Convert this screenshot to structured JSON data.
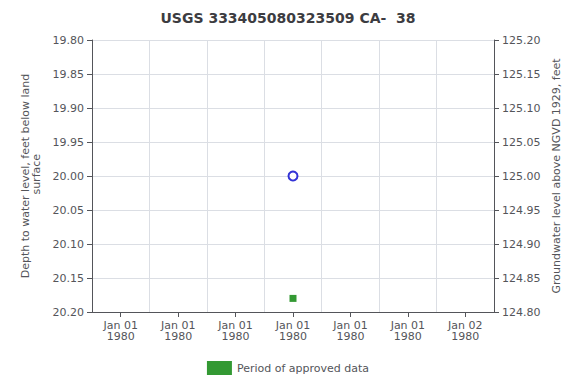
{
  "chart_data": {
    "type": "scatter",
    "title": "USGS 333405080323509 CA-  38",
    "categories": [
      "Jan 01\n1980",
      "Jan 01\n1980",
      "Jan 01\n1980",
      "Jan 01\n1980",
      "Jan 01\n1980",
      "Jan 01\n1980",
      "Jan 02\n1980"
    ],
    "series": [
      {
        "color": "#0000cc",
        "marker": "open-circle",
        "values": [
          null,
          null,
          null,
          20.0,
          null,
          null,
          null
        ]
      },
      {
        "name": "Period of approved data",
        "color": "#008000",
        "marker": "square",
        "values": [
          null,
          null,
          null,
          20.18,
          null,
          null,
          null
        ]
      }
    ],
    "ylabel": "Depth to water level, feet below land\n surface",
    "y2label": "Groundwater level above NGVD 1929, feet",
    "ylim": [
      20.2,
      19.8
    ],
    "yticks": [
      {
        "value": 19.8,
        "label": "19.80"
      },
      {
        "value": 19.85,
        "label": "19.85"
      },
      {
        "value": 19.9,
        "label": "19.90"
      },
      {
        "value": 19.95,
        "label": "19.95"
      },
      {
        "value": 20.0,
        "label": "20.00"
      },
      {
        "value": 20.05,
        "label": "20.05"
      },
      {
        "value": 20.1,
        "label": "20.10"
      },
      {
        "value": 20.15,
        "label": "20.15"
      },
      {
        "value": 20.2,
        "label": "20.20"
      }
    ],
    "y2lim": [
      124.8,
      125.2
    ],
    "y2ticks": [
      {
        "value": 124.8,
        "label": "124.80"
      },
      {
        "value": 124.85,
        "label": "124.85"
      },
      {
        "value": 124.9,
        "label": "124.90"
      },
      {
        "value": 124.95,
        "label": "124.95"
      },
      {
        "value": 125.0,
        "label": "125.00"
      },
      {
        "value": 125.05,
        "label": "125.05"
      },
      {
        "value": 125.1,
        "label": "125.10"
      },
      {
        "value": 125.15,
        "label": "125.15"
      },
      {
        "value": 125.2,
        "label": "125.20"
      }
    ],
    "grid": true,
    "legend": "bottom"
  }
}
